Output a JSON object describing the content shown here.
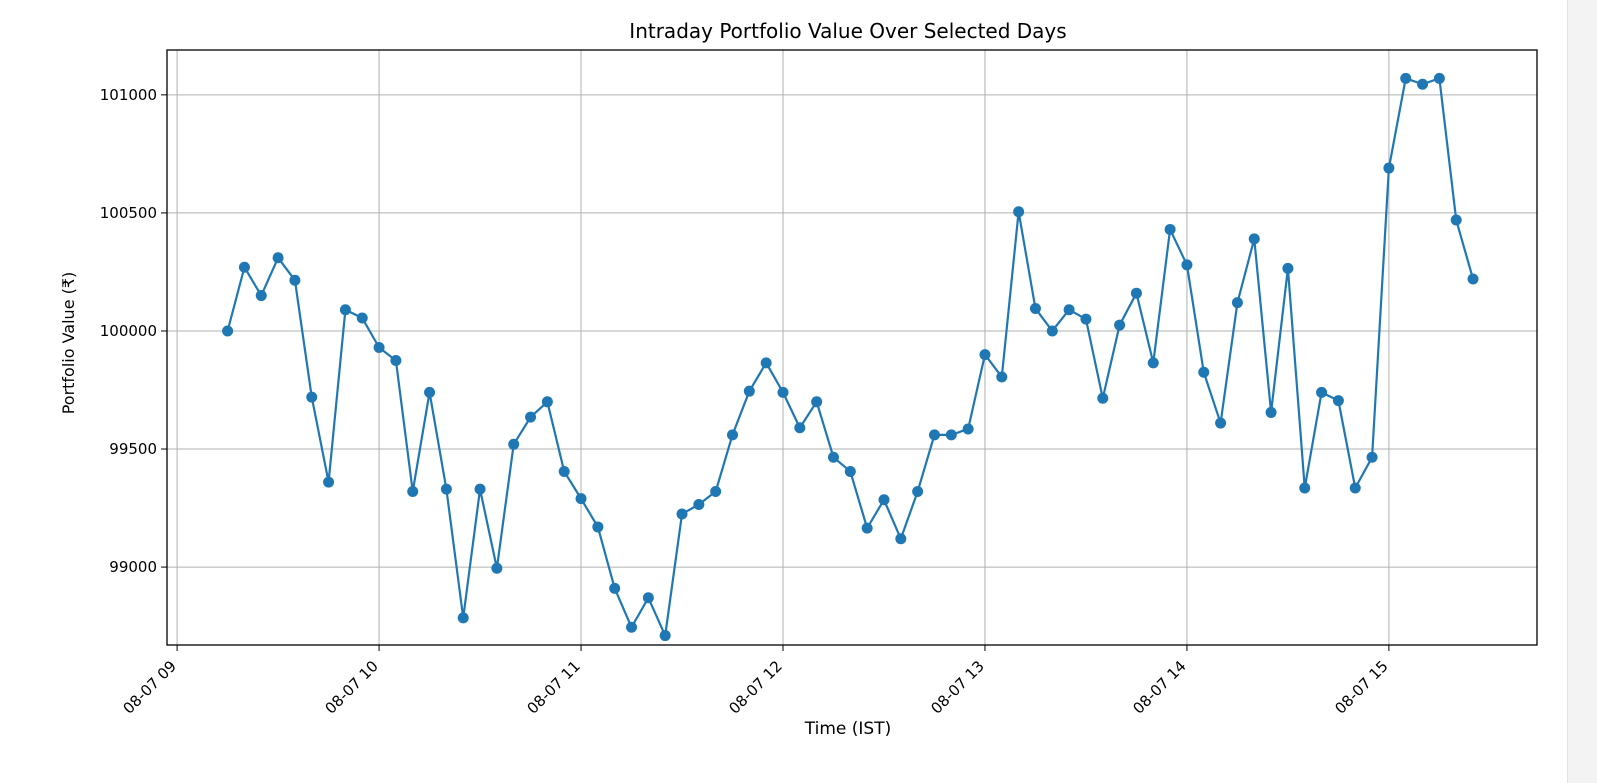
{
  "chart_data": {
    "type": "line",
    "title": "Intraday Portfolio Value Over Selected Days",
    "xlabel": "Time (IST)",
    "ylabel": "Portfolio Value (₹)",
    "grid": true,
    "x_ticks": [
      "08-07 09",
      "08-07 10",
      "08-07 11",
      "08-07 12",
      "08-07 13",
      "08-07 14",
      "08-07 15"
    ],
    "y_ticks": [
      99000,
      99500,
      100000,
      100500,
      101000
    ],
    "xlim": [
      "08-07 08:57",
      "08-07 15:44"
    ],
    "ylim": [
      98670,
      101190
    ],
    "series": [
      {
        "color": "#1f77b4",
        "marker": "circle",
        "points": [
          [
            "08-07 09:15",
            100000
          ],
          [
            "08-07 09:20",
            100270
          ],
          [
            "08-07 09:25",
            100150
          ],
          [
            "08-07 09:30",
            100310
          ],
          [
            "08-07 09:35",
            100215
          ],
          [
            "08-07 09:40",
            99720
          ],
          [
            "08-07 09:45",
            99360
          ],
          [
            "08-07 09:50",
            100090
          ],
          [
            "08-07 09:55",
            100055
          ],
          [
            "08-07 10:00",
            99930
          ],
          [
            "08-07 10:05",
            99875
          ],
          [
            "08-07 10:10",
            99320
          ],
          [
            "08-07 10:15",
            99740
          ],
          [
            "08-07 10:20",
            99330
          ],
          [
            "08-07 10:25",
            98785
          ],
          [
            "08-07 10:30",
            99330
          ],
          [
            "08-07 10:35",
            98995
          ],
          [
            "08-07 10:40",
            99520
          ],
          [
            "08-07 10:45",
            99635
          ],
          [
            "08-07 10:50",
            99700
          ],
          [
            "08-07 10:55",
            99405
          ],
          [
            "08-07 11:00",
            99290
          ],
          [
            "08-07 11:05",
            99170
          ],
          [
            "08-07 11:10",
            98910
          ],
          [
            "08-07 11:15",
            98745
          ],
          [
            "08-07 11:20",
            98870
          ],
          [
            "08-07 11:25",
            98710
          ],
          [
            "08-07 11:30",
            99225
          ],
          [
            "08-07 11:35",
            99265
          ],
          [
            "08-07 11:40",
            99320
          ],
          [
            "08-07 11:45",
            99560
          ],
          [
            "08-07 11:50",
            99745
          ],
          [
            "08-07 11:55",
            99865
          ],
          [
            "08-07 12:00",
            99740
          ],
          [
            "08-07 12:05",
            99590
          ],
          [
            "08-07 12:10",
            99700
          ],
          [
            "08-07 12:15",
            99465
          ],
          [
            "08-07 12:20",
            99405
          ],
          [
            "08-07 12:25",
            99165
          ],
          [
            "08-07 12:30",
            99285
          ],
          [
            "08-07 12:35",
            99120
          ],
          [
            "08-07 12:40",
            99320
          ],
          [
            "08-07 12:45",
            99560
          ],
          [
            "08-07 12:50",
            99560
          ],
          [
            "08-07 12:55",
            99585
          ],
          [
            "08-07 13:00",
            99900
          ],
          [
            "08-07 13:05",
            99805
          ],
          [
            "08-07 13:10",
            100505
          ],
          [
            "08-07 13:15",
            100095
          ],
          [
            "08-07 13:20",
            100000
          ],
          [
            "08-07 13:25",
            100090
          ],
          [
            "08-07 13:30",
            100050
          ],
          [
            "08-07 13:35",
            99715
          ],
          [
            "08-07 13:40",
            100025
          ],
          [
            "08-07 13:45",
            100160
          ],
          [
            "08-07 13:50",
            99865
          ],
          [
            "08-07 13:55",
            100430
          ],
          [
            "08-07 14:00",
            100280
          ],
          [
            "08-07 14:05",
            99825
          ],
          [
            "08-07 14:10",
            99610
          ],
          [
            "08-07 14:15",
            100120
          ],
          [
            "08-07 14:20",
            100390
          ],
          [
            "08-07 14:25",
            99655
          ],
          [
            "08-07 14:30",
            100265
          ],
          [
            "08-07 14:35",
            99335
          ],
          [
            "08-07 14:40",
            99740
          ],
          [
            "08-07 14:45",
            99705
          ],
          [
            "08-07 14:50",
            99335
          ],
          [
            "08-07 14:55",
            99465
          ],
          [
            "08-07 15:00",
            100690
          ],
          [
            "08-07 15:05",
            101070
          ],
          [
            "08-07 15:10",
            101045
          ],
          [
            "08-07 15:15",
            101070
          ],
          [
            "08-07 15:20",
            100470
          ],
          [
            "08-07 15:25",
            100220
          ]
        ]
      }
    ]
  }
}
